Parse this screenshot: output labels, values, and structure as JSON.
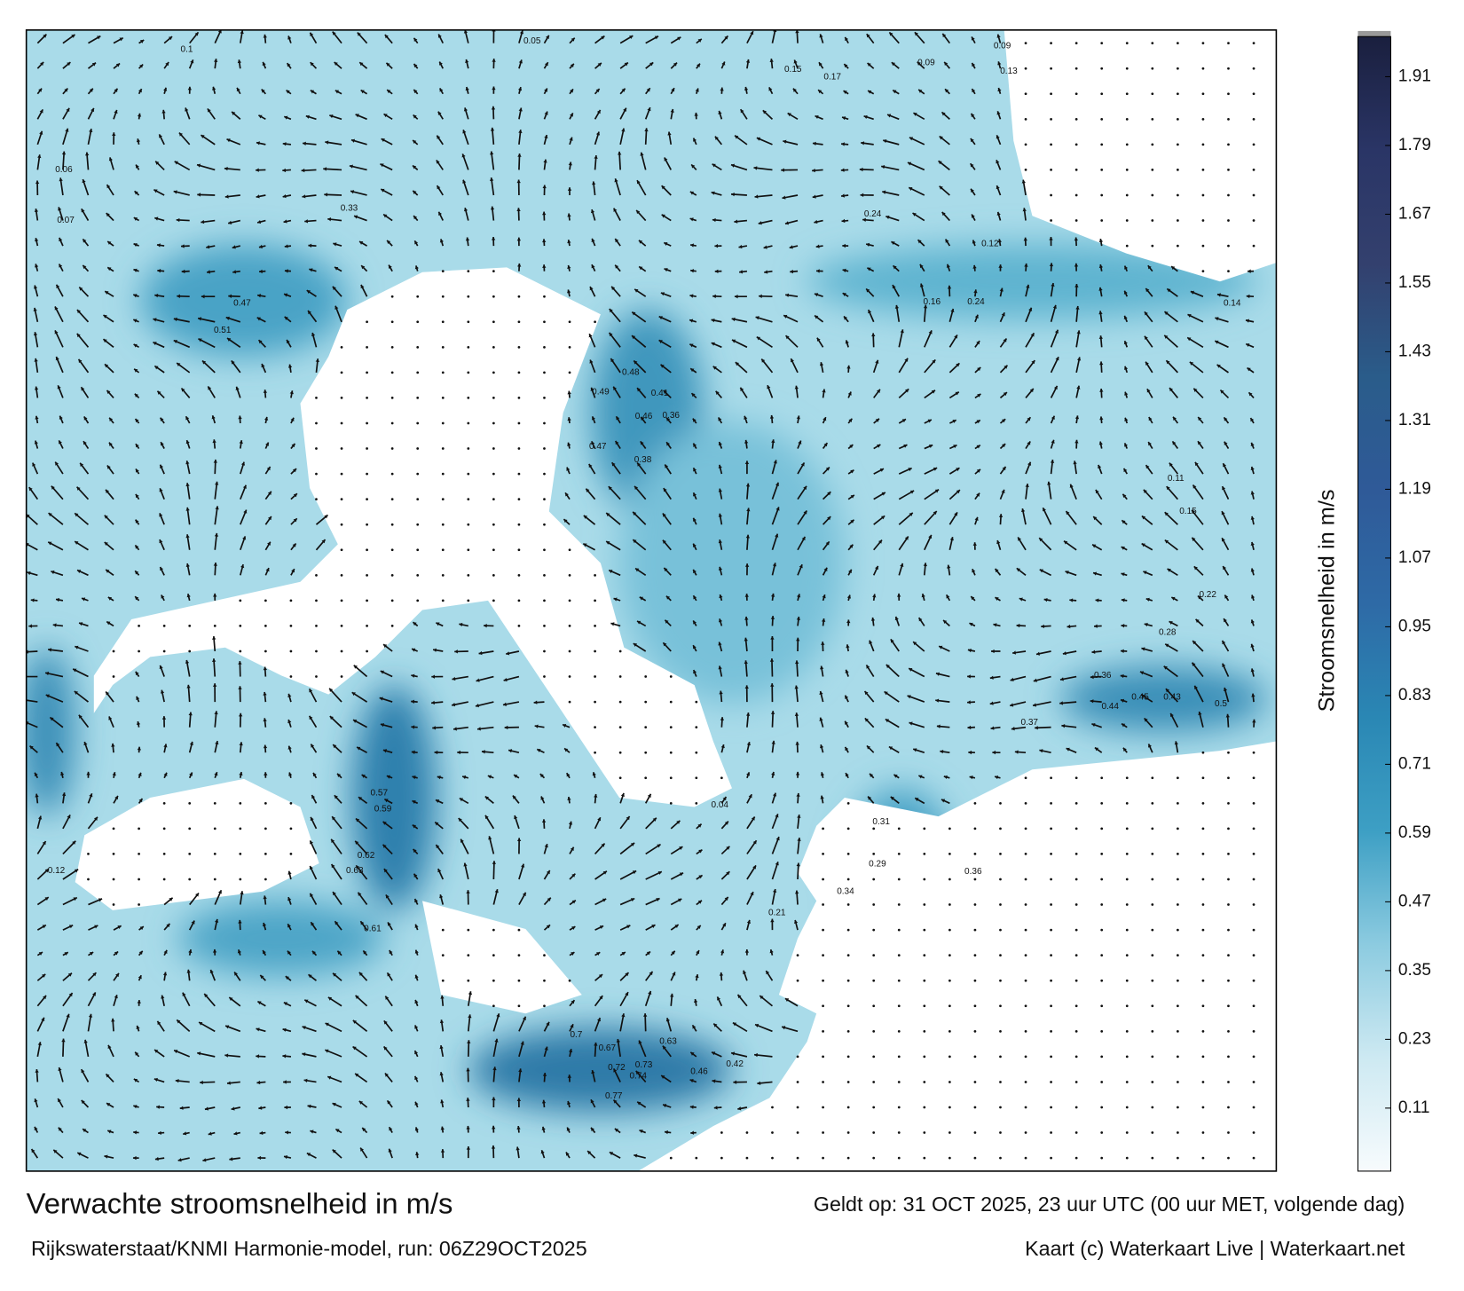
{
  "header": {
    "title": "Verwachte stroomsnelheid in m/s",
    "valid_time": "Geldt op: 31 OCT 2025, 23 uur UTC (00 uur MET, volgende dag)",
    "model": "Rijkswaterstaat/KNMI Harmonie-model, run: 06Z29OCT2025",
    "credit": "Kaart (c) Waterkaart Live | Waterkaart.net"
  },
  "colorbar": {
    "label": "Stroomsnelheid in m/s",
    "limits": [
      0,
      1.98
    ],
    "ticks": [
      0.11,
      0.23,
      0.35,
      0.47,
      0.59,
      0.71,
      0.83,
      0.95,
      1.07,
      1.19,
      1.31,
      1.43,
      1.55,
      1.67,
      1.79,
      1.91
    ],
    "colors": [
      "#f7fbfd",
      "#cde9f2",
      "#8ccbe0",
      "#3d9fc4",
      "#2a87b4",
      "#2e6aa6",
      "#2f5a98",
      "#2a5c8a",
      "#33406e",
      "#2a3566",
      "#1a1f3e"
    ]
  },
  "map": {
    "current_labels": [
      0.33,
      0.47,
      0.51,
      0.48,
      0.49,
      0.46,
      0.47,
      0.38,
      0.36,
      0.41,
      0.63,
      0.62,
      0.61,
      0.59,
      0.57,
      0.7,
      0.72,
      0.73,
      0.74,
      0.77,
      0.67,
      0.63,
      0.46,
      0.42,
      0.5,
      0.45,
      0.43,
      0.44,
      0.37,
      0.36,
      0.24,
      0.14,
      0.16,
      0.24,
      0.12,
      0.15,
      0.17,
      0.13,
      0.09,
      0.09,
      0.11,
      0.15,
      0.22,
      0.31,
      0.36,
      0.34,
      0.29,
      0.28,
      0.21,
      0.04,
      0.12,
      0.06,
      0.07,
      0.1,
      0.05
    ]
  }
}
